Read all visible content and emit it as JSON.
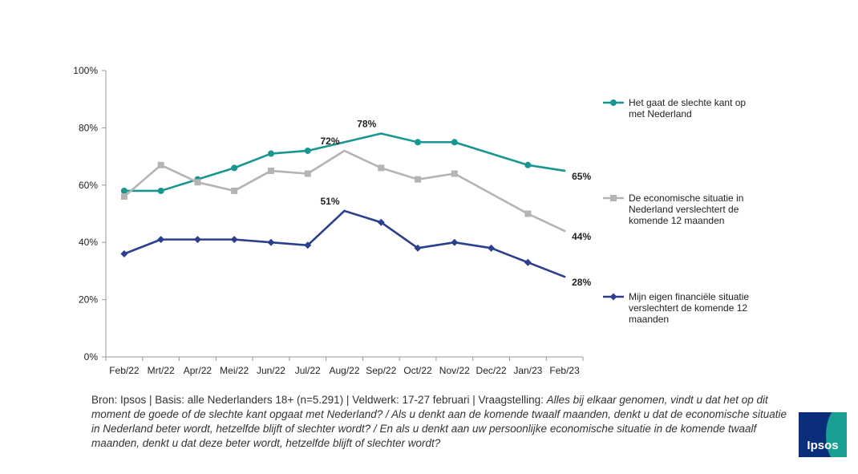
{
  "chart_data": {
    "type": "line",
    "categories": [
      "Feb/22",
      "Mrt/22",
      "Apr/22",
      "Mei/22",
      "Jun/22",
      "Jul/22",
      "Aug/22",
      "Sep/22",
      "Oct/22",
      "Nov/22",
      "Dec/22",
      "Jan/23",
      "Feb/23"
    ],
    "ylim": [
      0,
      100
    ],
    "yticks": [
      "0%",
      "20%",
      "40%",
      "60%",
      "80%",
      "100%"
    ],
    "grid": false,
    "legend_position": "right",
    "series": [
      {
        "name": "Het gaat de slechte kant op met Nederland",
        "legend_lines": [
          "Het gaat de slechte kant op",
          "met Nederland"
        ],
        "color": "#1a9690",
        "marker": "circle",
        "values": [
          58,
          58,
          62,
          66,
          71,
          72,
          null,
          78,
          75,
          75,
          null,
          67,
          65
        ],
        "labels": [
          {
            "index": 7,
            "text": "78%"
          },
          {
            "index": 12,
            "text": "65%"
          }
        ]
      },
      {
        "name": "De economische situatie in Nederland verslechtert de komende 12 maanden",
        "legend_lines": [
          "De economische situatie in",
          "Nederland verslechtert de",
          "komende 12 maanden"
        ],
        "color": "#b4b4b4",
        "marker": "square",
        "values": [
          56,
          67,
          61,
          58,
          65,
          64,
          72,
          66,
          62,
          64,
          null,
          50,
          44
        ],
        "labels": [
          {
            "index": 6,
            "text": "72%"
          },
          {
            "index": 12,
            "text": "44%"
          }
        ]
      },
      {
        "name": "Mijn eigen financiële situatie verslechtert de komende 12 maanden",
        "legend_lines": [
          "Mijn eigen financiële situatie",
          "verslechtert de komende 12",
          "maanden"
        ],
        "color": "#2b3f8c",
        "marker": "diamond",
        "values": [
          36,
          41,
          41,
          41,
          40,
          39,
          51,
          47,
          38,
          40,
          38,
          33,
          28
        ],
        "labels": [
          {
            "index": 6,
            "text": "51%"
          },
          {
            "index": 12,
            "text": "28%"
          }
        ]
      }
    ]
  },
  "source": {
    "prefix": "Bron: Ipsos | Basis: alle Nederlanders 18+ (n=5.291) | Veldwerk: 17-27 februari | Vraagstelling: ",
    "question": "Alles bij elkaar genomen, vindt u dat het op dit moment de goede of de slechte kant opgaat met Nederland? / Als u denkt aan de komende twaalf maanden, denkt u dat de economische situatie in Nederland beter wordt, hetzelfde blijft of slechter wordt? / En als u denkt aan uw persoonlijke economische situatie in de komende twaalf maanden, denkt u dat deze beter wordt, hetzelfde blijft of slechter wordt?"
  },
  "logo": {
    "text": "Ipsos",
    "colors": [
      "#0a2e7a",
      "#1a9f94"
    ]
  }
}
